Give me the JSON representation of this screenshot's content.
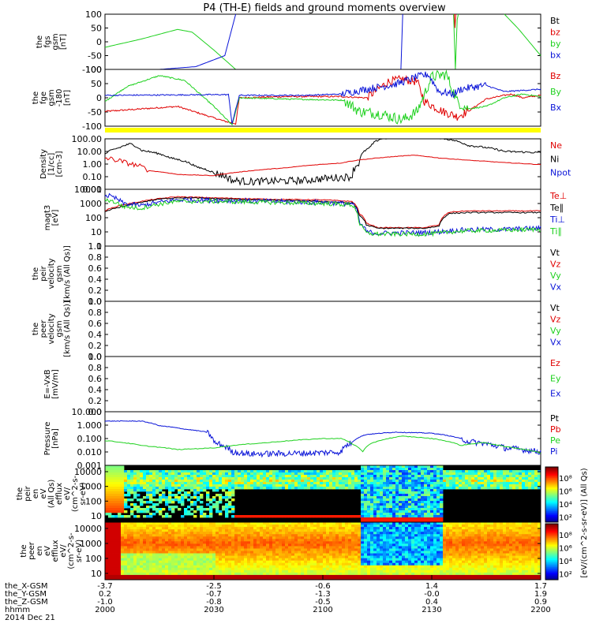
{
  "title": "P4 (TH-E) fields and ground moments overview",
  "colors": {
    "black": "#000000",
    "red": "#e00000",
    "green": "#1ed11e",
    "blue": "#0a14d8",
    "yellow": "#ffff00"
  },
  "chart_data": [
    {
      "type": "line",
      "ylabel": [
        "the",
        "fgs",
        "gsm",
        "[nT]"
      ],
      "yticks": [
        "100",
        "50",
        "0",
        "-50",
        "-100"
      ],
      "ylim": [
        -100,
        100
      ],
      "legend": [
        {
          "label": "Bt",
          "color": "black"
        },
        {
          "label": "bz",
          "color": "red"
        },
        {
          "label": "by",
          "color": "green"
        },
        {
          "label": "bx",
          "color": "blue"
        }
      ]
    },
    {
      "type": "line",
      "ylabel": [
        "the",
        "fge",
        "gsm",
        "-180",
        "[nT]"
      ],
      "yticks": [
        "100",
        "50",
        "0",
        "-50",
        "-100"
      ],
      "ylim": [
        -120,
        110
      ],
      "legend": [
        {
          "label": "Bz",
          "color": "red"
        },
        {
          "label": "By",
          "color": "green"
        },
        {
          "label": "Bx",
          "color": "blue"
        }
      ]
    },
    {
      "type": "line",
      "ylabel": [
        "Density",
        "[1/cc]",
        "[cm-3]"
      ],
      "yticks": [
        "100.00",
        "10.00",
        "1.00",
        "0.10",
        "0.01"
      ],
      "ylim": [
        0.01,
        100
      ],
      "log": true,
      "legend": [
        {
          "label": "Ne",
          "color": "red"
        },
        {
          "label": "Ni",
          "color": "black"
        },
        {
          "label": "Npot",
          "color": "blue"
        }
      ]
    },
    {
      "type": "line",
      "ylabel": [
        "magt3",
        "[eV]"
      ],
      "yticks": [
        "10000",
        "1000",
        "100",
        "10",
        "1"
      ],
      "ylim": [
        1,
        10000
      ],
      "log": true,
      "legend": [
        {
          "label": "Te⊥",
          "color": "red"
        },
        {
          "label": "Te∥",
          "color": "black"
        },
        {
          "label": "Ti⊥",
          "color": "blue"
        },
        {
          "label": "Ti∥",
          "color": "green"
        }
      ]
    },
    {
      "type": "line",
      "ylabel": [
        "the",
        "peir",
        "velocity",
        "gsm",
        "[km/s (All Qs)]"
      ],
      "yticks": [
        "1.0",
        "0.8",
        "0.6",
        "0.4",
        "0.2",
        "0.0"
      ],
      "ylim": [
        0,
        1
      ],
      "legend": [
        {
          "label": "Vt",
          "color": "black"
        },
        {
          "label": "Vz",
          "color": "red"
        },
        {
          "label": "Vy",
          "color": "green"
        },
        {
          "label": "Vx",
          "color": "blue"
        }
      ]
    },
    {
      "type": "line",
      "ylabel": [
        "the",
        "peer",
        "velocity",
        "gsm",
        "[km/s (All Qs)]"
      ],
      "yticks": [
        "1.0",
        "0.8",
        "0.6",
        "0.4",
        "0.2",
        "0.0"
      ],
      "ylim": [
        0,
        1
      ],
      "legend": [
        {
          "label": "Vt",
          "color": "black"
        },
        {
          "label": "Vz",
          "color": "red"
        },
        {
          "label": "Vy",
          "color": "green"
        },
        {
          "label": "Vx",
          "color": "blue"
        }
      ]
    },
    {
      "type": "line",
      "ylabel": [
        "E=-VxB",
        "[mV/m]"
      ],
      "yticks": [
        "1.0",
        "0.8",
        "0.6",
        "0.4",
        "0.2",
        "0.0"
      ],
      "ylim": [
        0,
        1
      ],
      "legend": [
        {
          "label": "Ez",
          "color": "red"
        },
        {
          "label": "Ey",
          "color": "green"
        },
        {
          "label": "Ex",
          "color": "blue"
        }
      ]
    },
    {
      "type": "line",
      "ylabel": [
        "Pressure",
        "[nPa]"
      ],
      "yticks": [
        "10.000",
        "1.000",
        "0.100",
        "0.010",
        "0.001"
      ],
      "ylim": [
        0.001,
        10
      ],
      "log": true,
      "legend": [
        {
          "label": "Pt",
          "color": "black"
        },
        {
          "label": "Pb",
          "color": "red"
        },
        {
          "label": "Pe",
          "color": "green"
        },
        {
          "label": "Pi",
          "color": "blue"
        }
      ]
    },
    {
      "type": "heatmap",
      "ylabel": [
        "the",
        "peir",
        "en",
        "eV",
        "(All Qs)",
        "efflux",
        "eV/",
        "(cm^2-s-",
        "sr-eV)"
      ],
      "yticks": [
        "10000",
        "1000",
        "100",
        "10"
      ],
      "ylim": [
        5,
        30000
      ],
      "log": true
    },
    {
      "type": "heatmap",
      "ylabel": [
        "the",
        "peer",
        "en",
        "eV",
        "efflux",
        "eV/",
        "(cm^2-s-",
        "sr-eV)"
      ],
      "yticks": [
        "10000",
        "1000",
        "100",
        "10"
      ],
      "ylim": [
        5,
        30000
      ],
      "log": true
    }
  ],
  "colorbar": {
    "label": "[eV/(cm^2-s-sr-eV)] (All Qs)",
    "ticks": [
      "10⁸",
      "10⁶",
      "10⁴",
      "10²",
      "10⁸",
      "10⁶",
      "10⁴",
      "10²"
    ]
  },
  "xaxis": {
    "rows": [
      {
        "label": "the_X-GSM",
        "values": [
          "-3.7",
          "-2.5",
          "-0.6",
          "1.4",
          "1.7"
        ]
      },
      {
        "label": "the_Y-GSM",
        "values": [
          "0.2",
          "-0.7",
          "-1.3",
          "-0.0",
          "1.9"
        ]
      },
      {
        "label": "the_Z-GSM",
        "values": [
          "-1.0",
          "-0.8",
          "-0.5",
          "0.4",
          "0.9"
        ]
      },
      {
        "label": "hhmm",
        "values": [
          "2000",
          "2030",
          "2100",
          "2130",
          "2200"
        ]
      }
    ],
    "date": "2014 Dec 21",
    "time_range": [
      0,
      120
    ]
  }
}
